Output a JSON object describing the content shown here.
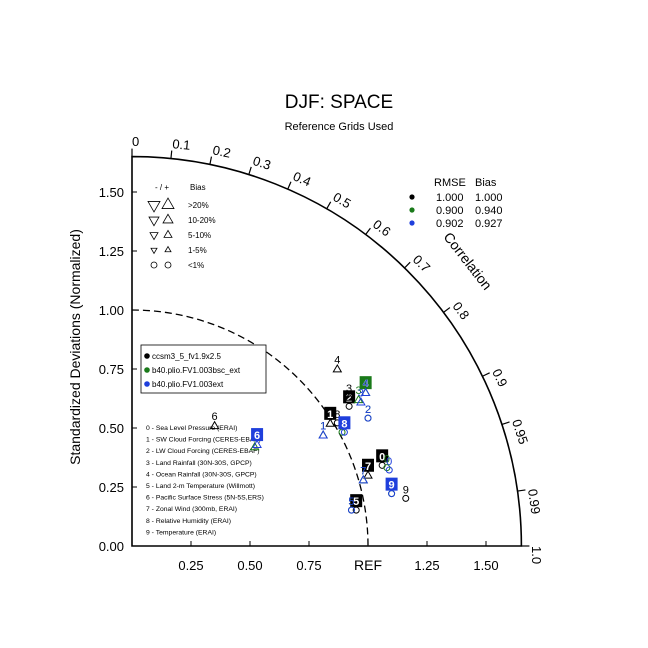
{
  "chart_data": {
    "type": "scatter",
    "subtype": "taylor-diagram",
    "title": "DJF: SPACE",
    "subtitle": "Reference Grids Used",
    "ylabel": "Standardized Deviations (Normalized)",
    "arc_label": "Correlation",
    "ref_label": "REF",
    "xlim": [
      0,
      1.65
    ],
    "ylim": [
      0,
      1.65
    ],
    "x_ticks": [
      "0.25",
      "0.50",
      "0.75",
      "1.25",
      "1.50"
    ],
    "x_tick_values": [
      0.25,
      0.5,
      0.75,
      1.25,
      1.5
    ],
    "y_ticks": [
      "0.00",
      "0.25",
      "0.50",
      "0.75",
      "1.00",
      "1.25",
      "1.50"
    ],
    "y_tick_values": [
      0,
      0.25,
      0.5,
      0.75,
      1.0,
      1.25,
      1.5
    ],
    "corr_ticks": [
      {
        "label": "0",
        "r": 0
      },
      {
        "label": "0.1",
        "r": 0.1
      },
      {
        "label": "0.2",
        "r": 0.2
      },
      {
        "label": "0.3",
        "r": 0.3
      },
      {
        "label": "0.4",
        "r": 0.4
      },
      {
        "label": "0.5",
        "r": 0.5
      },
      {
        "label": "0.6",
        "r": 0.6
      },
      {
        "label": "0.7",
        "r": 0.7
      },
      {
        "label": "0.8",
        "r": 0.8
      },
      {
        "label": "0.9",
        "r": 0.9
      },
      {
        "label": "0.95",
        "r": 0.95
      },
      {
        "label": "0.99",
        "r": 0.99
      },
      {
        "label": "1.0",
        "r": 1.0
      }
    ],
    "ref_circle_radius": 1.0,
    "ref_point": 1.0,
    "bias_legend": {
      "header": [
        "- / +",
        "Bias"
      ],
      "rows": [
        {
          "label": ">20%",
          "size": 4
        },
        {
          "label": "10-20%",
          "size": 3
        },
        {
          "label": "5-10%",
          "size": 2
        },
        {
          "label": "1-5%",
          "size": 1
        },
        {
          "label": "<1%",
          "size": 0
        }
      ]
    },
    "stats_table": {
      "headers": [
        "RMSE",
        "Bias"
      ],
      "rows": [
        {
          "color": "#000000",
          "rmse": "1.000",
          "bias": "1.000"
        },
        {
          "color": "#1a7a1a",
          "rmse": "0.900",
          "bias": "0.940"
        },
        {
          "color": "#1f3fdc",
          "rmse": "0.902",
          "bias": "0.927"
        }
      ]
    },
    "series": [
      {
        "name": "ccsm3_5_fv1.9x2.5",
        "color": "#000000"
      },
      {
        "name": "b40.plio.FV1.003bsc_ext",
        "color": "#1a7a1a"
      },
      {
        "name": "b40.plio.FV1.003ext",
        "color": "#1f3fdc"
      }
    ],
    "variables": [
      "0 - Sea Level Pressure (ERAI)",
      "1 - SW Cloud Forcing (CERES-EBAF)",
      "2 - LW Cloud Forcing (CERES-EBAF)",
      "3 - Land Rainfall (30N-30S, GPCP)",
      "4 - Ocean Rainfall (30N-30S, GPCP)",
      "5 - Land 2-m Temperature (Willmott)",
      "6 - Pacific Surface Stress (5N-5S,ERS)",
      "7 - Zonal Wind (300mb, ERAI)",
      "8 - Relative Humidity (ERAI)",
      "9 - Temperature (ERAI)"
    ],
    "points": [
      {
        "series": 0,
        "var": "0",
        "x": 1.06,
        "y": 0.38,
        "boxed": true,
        "marker": "circle"
      },
      {
        "series": 1,
        "var": "0",
        "x": 1.08,
        "y": 0.37,
        "boxed": false,
        "marker": "circle"
      },
      {
        "series": 2,
        "var": "0",
        "x": 1.09,
        "y": 0.36,
        "boxed": false,
        "marker": "circle"
      },
      {
        "series": 0,
        "var": "1",
        "x": 0.84,
        "y": 0.56,
        "boxed": true,
        "marker": "tri-up"
      },
      {
        "series": 1,
        "var": "1",
        "x": 0.81,
        "y": 0.51,
        "boxed": false,
        "marker": "tri-up"
      },
      {
        "series": 2,
        "var": "1",
        "x": 0.81,
        "y": 0.51,
        "boxed": false,
        "marker": "tri-up"
      },
      {
        "series": 0,
        "var": "2",
        "x": 0.92,
        "y": 0.63,
        "boxed": true,
        "marker": "circle"
      },
      {
        "series": 1,
        "var": "2",
        "x": 1.0,
        "y": 0.58,
        "boxed": false,
        "marker": "circle"
      },
      {
        "series": 2,
        "var": "2",
        "x": 1.0,
        "y": 0.58,
        "boxed": false,
        "marker": "circle"
      },
      {
        "series": 0,
        "var": "3",
        "x": 0.92,
        "y": 0.67,
        "boxed": false,
        "marker": "tri-up"
      },
      {
        "series": 1,
        "var": "3",
        "x": 0.96,
        "y": 0.66,
        "boxed": false,
        "marker": "tri-up"
      },
      {
        "series": 2,
        "var": "3",
        "x": 0.97,
        "y": 0.65,
        "boxed": false,
        "marker": "tri-up"
      },
      {
        "series": 0,
        "var": "4",
        "x": 0.87,
        "y": 0.79,
        "boxed": false,
        "marker": "tri-up"
      },
      {
        "series": 1,
        "var": "4",
        "x": 0.99,
        "y": 0.69,
        "boxed": true,
        "marker": "tri-up"
      },
      {
        "series": 2,
        "var": "4",
        "x": 0.99,
        "y": 0.69,
        "boxed": false,
        "marker": "tri-up"
      },
      {
        "series": 0,
        "var": "5",
        "x": 0.95,
        "y": 0.19,
        "boxed": true,
        "marker": "circle"
      },
      {
        "series": 1,
        "var": "5",
        "x": 0.93,
        "y": 0.19,
        "boxed": false,
        "marker": "circle"
      },
      {
        "series": 2,
        "var": "5",
        "x": 0.93,
        "y": 0.19,
        "boxed": false,
        "marker": "circle"
      },
      {
        "series": 0,
        "var": "6",
        "x": 0.35,
        "y": 0.55,
        "boxed": false,
        "marker": "tri-up"
      },
      {
        "series": 1,
        "var": "6",
        "x": 0.52,
        "y": 0.46,
        "boxed": false,
        "marker": "tri-up"
      },
      {
        "series": 2,
        "var": "6",
        "x": 0.53,
        "y": 0.47,
        "boxed": true,
        "marker": "tri-up"
      },
      {
        "series": 0,
        "var": "7",
        "x": 1.0,
        "y": 0.34,
        "boxed": true,
        "marker": "tri-up"
      },
      {
        "series": 1,
        "var": "7",
        "x": 0.98,
        "y": 0.32,
        "boxed": false,
        "marker": "tri-up"
      },
      {
        "series": 2,
        "var": "7",
        "x": 0.98,
        "y": 0.32,
        "boxed": false,
        "marker": "tri-up"
      },
      {
        "series": 0,
        "var": "8",
        "x": 0.87,
        "y": 0.56,
        "boxed": false,
        "marker": "circle"
      },
      {
        "series": 1,
        "var": "8",
        "x": 0.89,
        "y": 0.52,
        "boxed": false,
        "marker": "circle"
      },
      {
        "series": 2,
        "var": "8",
        "x": 0.9,
        "y": 0.52,
        "boxed": true,
        "marker": "circle"
      },
      {
        "series": 0,
        "var": "9",
        "x": 1.16,
        "y": 0.24,
        "boxed": false,
        "marker": "circle"
      },
      {
        "series": 1,
        "var": "9",
        "x": 1.1,
        "y": 0.26,
        "boxed": false,
        "marker": "circle"
      },
      {
        "series": 2,
        "var": "9",
        "x": 1.1,
        "y": 0.26,
        "boxed": true,
        "marker": "circle"
      }
    ]
  }
}
